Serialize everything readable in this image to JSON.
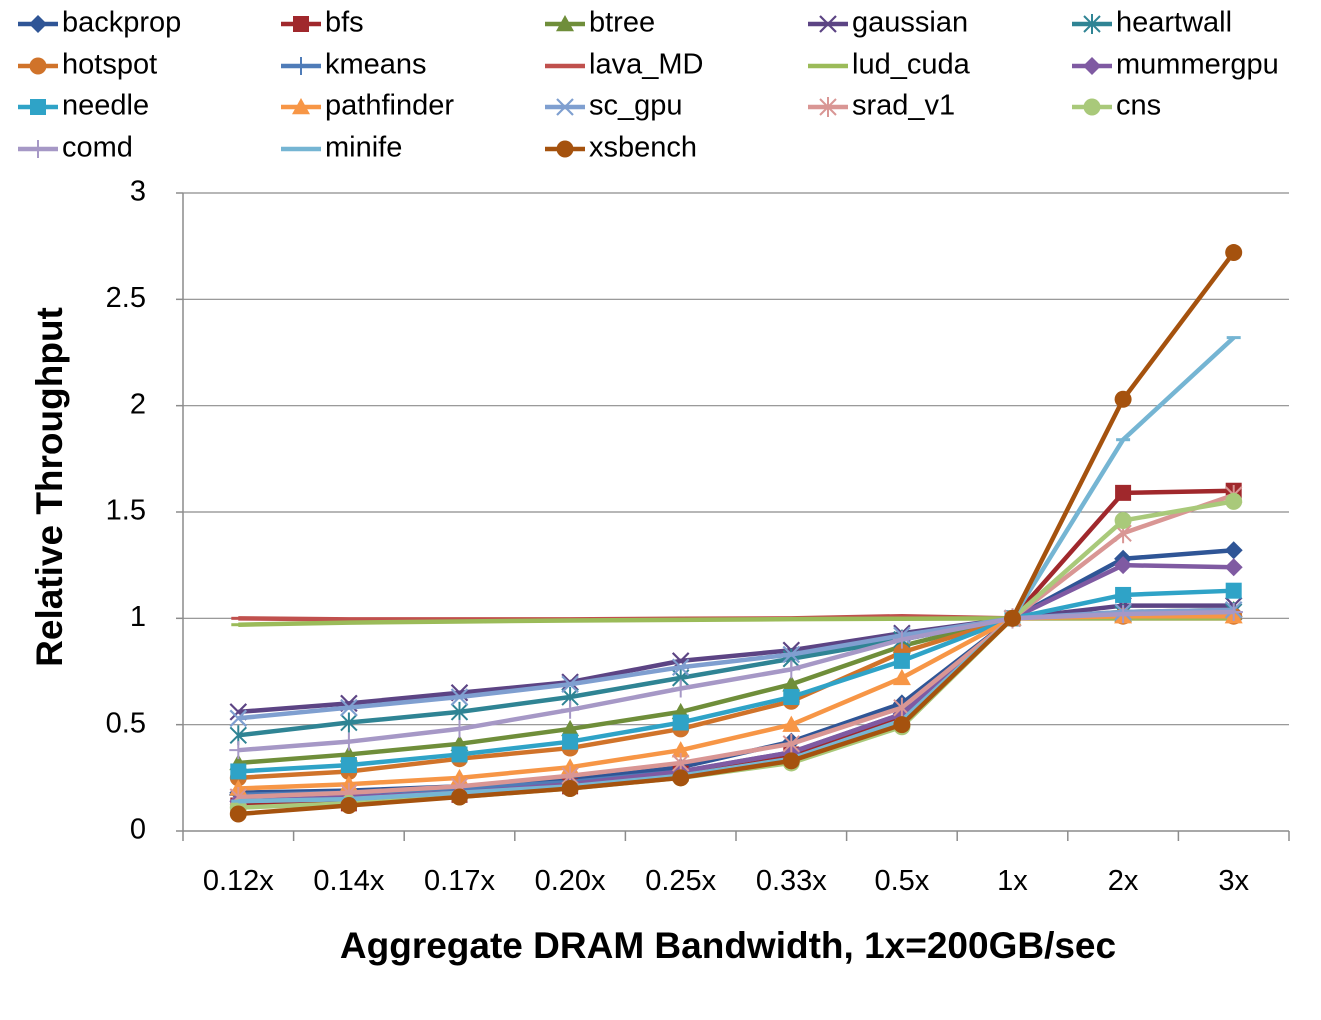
{
  "chart_data": {
    "type": "line",
    "xlabel": "Aggregate DRAM Bandwidth, 1x=200GB/sec",
    "ylabel": "Relative Throughput",
    "ylim": [
      0,
      3
    ],
    "yticks": [
      "0",
      "0.5",
      "1",
      "1.5",
      "2",
      "2.5",
      "3"
    ],
    "categories": [
      "0.12x",
      "0.14x",
      "0.17x",
      "0.20x",
      "0.25x",
      "0.33x",
      "0.5x",
      "1x",
      "2x",
      "3x"
    ],
    "grid": "horizontal",
    "legend_position": "top",
    "series": [
      {
        "name": "backprop",
        "color": "#2f5596",
        "marker": "diamond",
        "values": [
          0.18,
          0.19,
          0.21,
          0.24,
          0.3,
          0.42,
          0.6,
          1,
          1.28,
          1.32
        ]
      },
      {
        "name": "bfs",
        "color": "#a0282c",
        "marker": "square",
        "values": [
          0.12,
          0.13,
          0.17,
          0.21,
          0.27,
          0.36,
          0.54,
          1,
          1.59,
          1.6
        ]
      },
      {
        "name": "btree",
        "color": "#6f8e3a",
        "marker": "triangle",
        "values": [
          0.32,
          0.36,
          0.41,
          0.48,
          0.56,
          0.69,
          0.87,
          1,
          1.03,
          1.04
        ]
      },
      {
        "name": "gaussian",
        "color": "#5c4484",
        "marker": "x",
        "values": [
          0.56,
          0.6,
          0.65,
          0.7,
          0.8,
          0.85,
          0.93,
          1,
          1.06,
          1.06
        ]
      },
      {
        "name": "heartwall",
        "color": "#2f8494",
        "marker": "star",
        "values": [
          0.45,
          0.51,
          0.56,
          0.63,
          0.72,
          0.81,
          0.9,
          1,
          1.02,
          1.03
        ]
      },
      {
        "name": "hotspot",
        "color": "#d0732a",
        "marker": "circle",
        "values": [
          0.25,
          0.28,
          0.34,
          0.39,
          0.48,
          0.61,
          0.84,
          1,
          1.01,
          1.01
        ]
      },
      {
        "name": "kmeans",
        "color": "#4f7cb8",
        "marker": "plus",
        "values": [
          0.17,
          0.18,
          0.2,
          0.23,
          0.28,
          0.37,
          0.55,
          1,
          1.02,
          1.03
        ]
      },
      {
        "name": "lava_MD",
        "color": "#c0504d",
        "marker": "dash",
        "values": [
          1,
          0.995,
          0.995,
          0.995,
          0.998,
          1.0,
          1.01,
          1,
          1.0,
          1.0
        ]
      },
      {
        "name": "lud_cuda",
        "color": "#9bbb59",
        "marker": "dash",
        "values": [
          0.97,
          0.98,
          0.985,
          0.99,
          0.993,
          0.996,
          0.998,
          1,
          1.0,
          1.0
        ]
      },
      {
        "name": "mummergpu",
        "color": "#7f5aa2",
        "marker": "diamond",
        "values": [
          0.14,
          0.16,
          0.18,
          0.22,
          0.28,
          0.37,
          0.55,
          1,
          1.25,
          1.24
        ]
      },
      {
        "name": "needle",
        "color": "#2fa3c7",
        "marker": "square",
        "values": [
          0.28,
          0.31,
          0.36,
          0.42,
          0.51,
          0.63,
          0.8,
          1,
          1.11,
          1.13
        ]
      },
      {
        "name": "pathfinder",
        "color": "#f79646",
        "marker": "triangle",
        "values": [
          0.2,
          0.22,
          0.25,
          0.3,
          0.38,
          0.5,
          0.72,
          1,
          1.01,
          1.01
        ]
      },
      {
        "name": "sc_gpu",
        "color": "#7f9fd0",
        "marker": "x",
        "values": [
          0.53,
          0.58,
          0.63,
          0.69,
          0.77,
          0.83,
          0.92,
          1,
          1.03,
          1.04
        ]
      },
      {
        "name": "srad_v1",
        "color": "#d99694",
        "marker": "star",
        "values": [
          0.16,
          0.18,
          0.21,
          0.26,
          0.32,
          0.41,
          0.58,
          1,
          1.4,
          1.58
        ]
      },
      {
        "name": "cns",
        "color": "#a9c97a",
        "marker": "circle",
        "values": [
          0.11,
          0.13,
          0.16,
          0.2,
          0.25,
          0.32,
          0.49,
          1,
          1.46,
          1.55
        ]
      },
      {
        "name": "comd",
        "color": "#a698c6",
        "marker": "plus",
        "values": [
          0.38,
          0.42,
          0.48,
          0.57,
          0.67,
          0.76,
          0.9,
          1,
          1.02,
          1.03
        ]
      },
      {
        "name": "minife",
        "color": "#75b5d3",
        "marker": "dash",
        "values": [
          0.14,
          0.15,
          0.18,
          0.21,
          0.26,
          0.34,
          0.52,
          1,
          1.84,
          2.32
        ]
      },
      {
        "name": "xsbench",
        "color": "#a5520e",
        "marker": "circle",
        "values": [
          0.08,
          0.12,
          0.16,
          0.2,
          0.25,
          0.33,
          0.5,
          1,
          2.03,
          2.72
        ]
      }
    ]
  }
}
